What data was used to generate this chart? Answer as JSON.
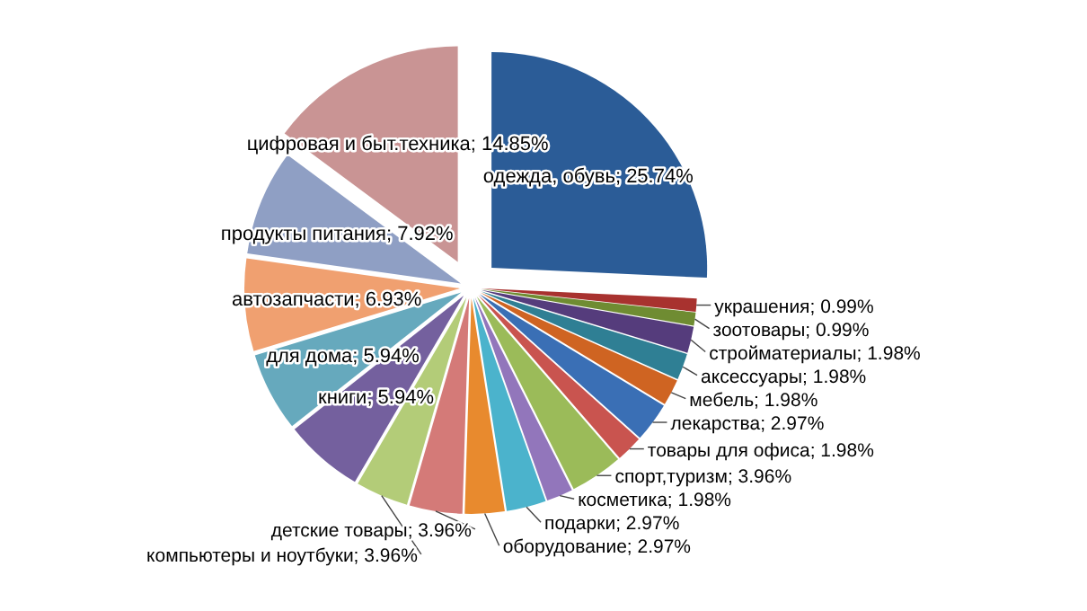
{
  "chart_data": {
    "type": "pie",
    "categories": [
      "одежда, обувь",
      "украшения",
      "зоотовары",
      "стройматериалы",
      "аксессуары",
      "мебель",
      "лекарства",
      "товары для офиса",
      "спорт,туризм",
      "косметика",
      "подарки",
      "оборудование",
      "детские товары",
      "компьютеры и ноутбуки",
      "книги",
      "для дома",
      "автозапчасти",
      "продукты питания",
      "цифровая и быт.техника"
    ],
    "values": [
      25.74,
      0.99,
      0.99,
      1.98,
      1.98,
      1.98,
      2.97,
      1.98,
      3.96,
      1.98,
      2.97,
      2.97,
      3.96,
      3.96,
      5.94,
      5.94,
      6.93,
      7.92,
      14.85
    ],
    "value_labels": [
      "25.74%",
      "0.99%",
      "0.99%",
      "1.98%",
      "1.98%",
      "1.98%",
      "2.97%",
      "1.98%",
      "3.96%",
      "1.98%",
      "2.97%",
      "2.97%",
      "3.96%",
      "3.96%",
      "5.94%",
      "5.94%",
      "6.93%",
      "7.92%",
      "14.85%"
    ],
    "colors": [
      "#2b5c97",
      "#a8322f",
      "#6f8c32",
      "#553c7c",
      "#2f7f94",
      "#cf6422",
      "#3a6fb5",
      "#c9544f",
      "#9bbb59",
      "#9276bb",
      "#4bb3cc",
      "#e88a2e",
      "#d47a78",
      "#b3cc78",
      "#74609e",
      "#66a9bd",
      "#f0a070",
      "#8f9fc4",
      "#c99494"
    ]
  }
}
